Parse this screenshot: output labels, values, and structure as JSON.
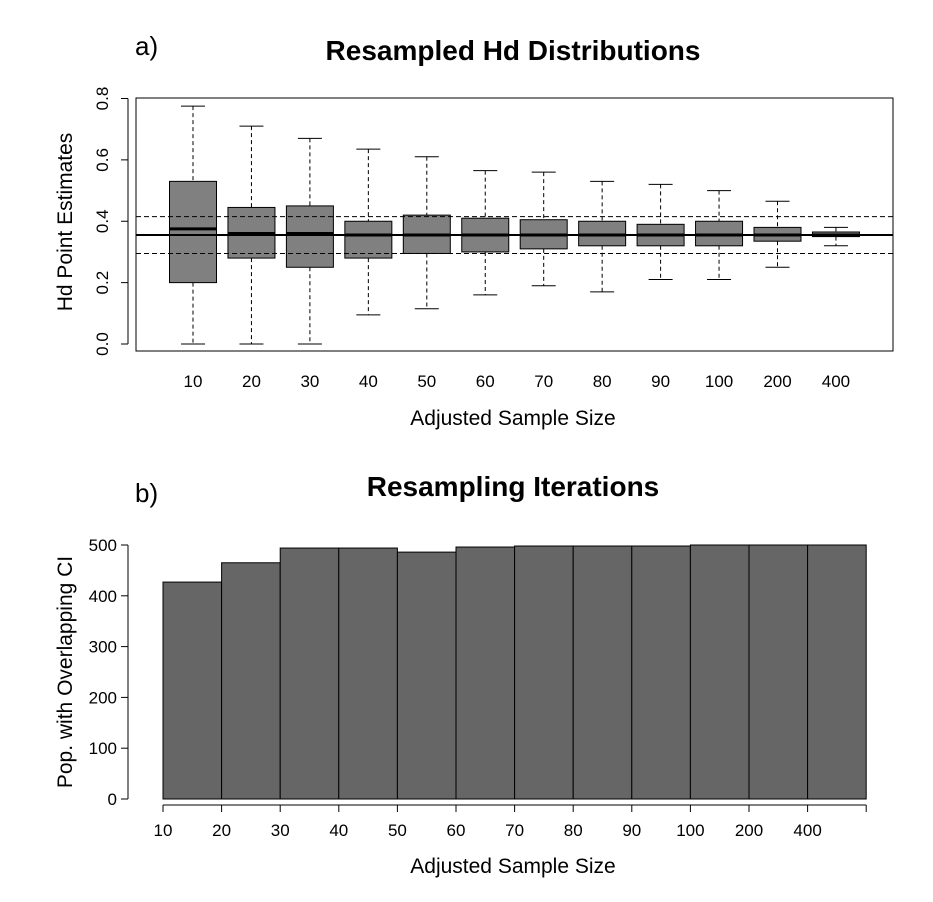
{
  "chart_data": [
    {
      "panel_label": "a)",
      "type": "box",
      "title": "Resampled Hd Distributions",
      "xlabel": "Adjusted Sample Size",
      "ylabel": "Hd Point Estimates",
      "ylim": [
        0,
        0.8
      ],
      "yticks": [
        "0.0",
        "0.2",
        "0.4",
        "0.6",
        "0.8"
      ],
      "grid": false,
      "categories": [
        "10",
        "20",
        "30",
        "40",
        "50",
        "60",
        "70",
        "80",
        "90",
        "100",
        "200",
        "400"
      ],
      "boxes": [
        {
          "min": 0.0,
          "q1": 0.2,
          "median": 0.375,
          "q3": 0.53,
          "max": 0.775
        },
        {
          "min": 0.0,
          "q1": 0.28,
          "median": 0.36,
          "q3": 0.445,
          "max": 0.71
        },
        {
          "min": 0.0,
          "q1": 0.25,
          "median": 0.36,
          "q3": 0.45,
          "max": 0.67
        },
        {
          "min": 0.095,
          "q1": 0.28,
          "median": 0.355,
          "q3": 0.4,
          "max": 0.635
        },
        {
          "min": 0.115,
          "q1": 0.295,
          "median": 0.355,
          "q3": 0.42,
          "max": 0.61
        },
        {
          "min": 0.16,
          "q1": 0.3,
          "median": 0.355,
          "q3": 0.41,
          "max": 0.565
        },
        {
          "min": 0.19,
          "q1": 0.31,
          "median": 0.355,
          "q3": 0.405,
          "max": 0.56
        },
        {
          "min": 0.17,
          "q1": 0.32,
          "median": 0.355,
          "q3": 0.4,
          "max": 0.53
        },
        {
          "min": 0.21,
          "q1": 0.32,
          "median": 0.355,
          "q3": 0.39,
          "max": 0.52
        },
        {
          "min": 0.21,
          "q1": 0.32,
          "median": 0.355,
          "q3": 0.4,
          "max": 0.5
        },
        {
          "min": 0.25,
          "q1": 0.335,
          "median": 0.355,
          "q3": 0.38,
          "max": 0.465
        },
        {
          "min": 0.32,
          "q1": 0.35,
          "median": 0.355,
          "q3": 0.365,
          "max": 0.38
        }
      ],
      "reference_lines": {
        "solid": 0.355,
        "dashed": [
          0.295,
          0.415
        ]
      }
    },
    {
      "panel_label": "b)",
      "type": "bar",
      "title": "Resampling Iterations",
      "xlabel": "Adjusted Sample Size",
      "ylabel": "Pop. with Overlapping CI",
      "ylim": [
        0,
        500
      ],
      "yticks": [
        "0",
        "100",
        "200",
        "300",
        "400",
        "500"
      ],
      "grid": false,
      "categories": [
        "10",
        "20",
        "30",
        "40",
        "50",
        "60",
        "70",
        "80",
        "90",
        "100",
        "200",
        "400"
      ],
      "values": [
        427,
        465,
        494,
        494,
        486,
        496,
        498,
        498,
        498,
        500,
        500,
        500
      ]
    }
  ],
  "colors": {
    "box_fill": "#808080",
    "bar_fill": "#666666",
    "line": "#000000"
  }
}
